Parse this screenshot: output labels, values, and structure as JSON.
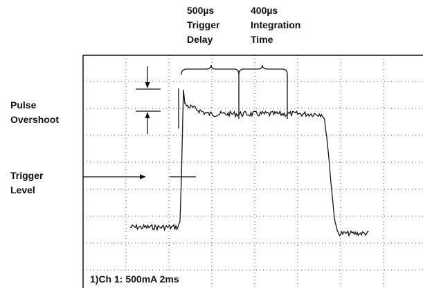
{
  "trigger_delay": {
    "time": "500µs",
    "lines": [
      "Trigger",
      "Delay"
    ]
  },
  "integration_time": {
    "time": "400µs",
    "lines": [
      "Integration",
      "Time"
    ]
  },
  "pulse_overshoot": [
    "Pulse",
    "Overshoot"
  ],
  "trigger_level": [
    "Trigger",
    "Level"
  ],
  "channel_info": "1)Ch 1: 500mA  2ms"
}
